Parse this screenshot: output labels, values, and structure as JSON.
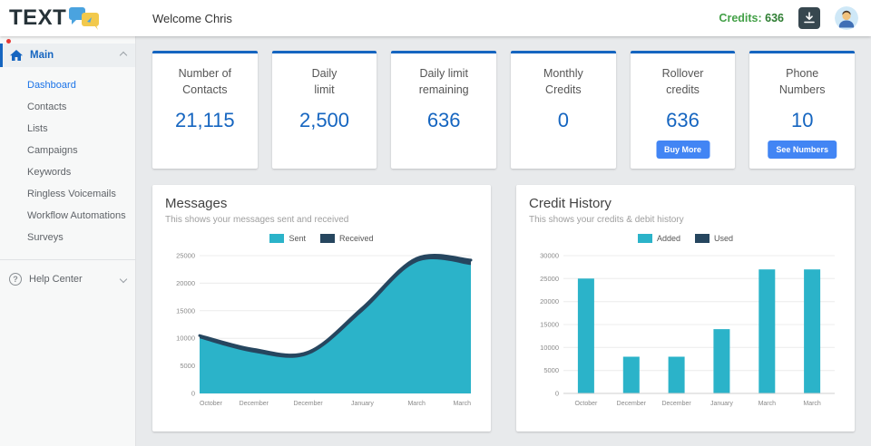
{
  "topbar": {
    "logo_text": "TEXT",
    "welcome": "Welcome Chris",
    "credits_label": "Credits:",
    "credits_value": "636"
  },
  "sidebar": {
    "main_label": "Main",
    "items": [
      "Dashboard",
      "Contacts",
      "Lists",
      "Campaigns",
      "Keywords",
      "Ringless Voicemails",
      "Workflow Automations",
      "Surveys"
    ],
    "active_item": "Dashboard",
    "help_label": "Help Center"
  },
  "stats": [
    {
      "title": "Number of\nContacts",
      "value": "21,115"
    },
    {
      "title": "Daily\nlimit",
      "value": "2,500"
    },
    {
      "title": "Daily limit\nremaining",
      "value": "636"
    },
    {
      "title": "Monthly\nCredits",
      "value": "0"
    },
    {
      "title": "Rollover\ncredits",
      "value": "636",
      "button": "Buy More"
    },
    {
      "title": "Phone\nNumbers",
      "value": "10",
      "button": "See Numbers"
    }
  ],
  "colors": {
    "accent_blue": "#1565c0",
    "button_blue": "#4285f4",
    "credits_green": "#43a047",
    "teal": "#2bb3c9",
    "navy": "#26465f"
  },
  "chart_data": [
    {
      "type": "area",
      "title": "Messages",
      "subtitle": "This shows your messages sent and received",
      "categories": [
        "October",
        "December",
        "December",
        "January",
        "March",
        "March"
      ],
      "series": [
        {
          "name": "Sent",
          "color": "#2bb3c9",
          "values": [
            10000,
            7400,
            7000,
            14800,
            23800,
            23300
          ]
        },
        {
          "name": "Received",
          "color": "#26465f",
          "values": [
            10500,
            8000,
            7500,
            15500,
            24500,
            24200
          ]
        }
      ],
      "ylim": [
        0,
        25000
      ],
      "yticks": [
        0,
        5000,
        10000,
        15000,
        20000,
        25000
      ],
      "grid": true,
      "legend_position": "top"
    },
    {
      "type": "bar",
      "title": "Credit History",
      "subtitle": "This shows your credits & debit history",
      "categories": [
        "October",
        "December",
        "December",
        "January",
        "March",
        "March"
      ],
      "series": [
        {
          "name": "Added",
          "color": "#2bb3c9",
          "values": [
            25000,
            8000,
            8000,
            14000,
            27000,
            27000
          ]
        },
        {
          "name": "Used",
          "color": "#26465f",
          "values": [
            0,
            0,
            0,
            0,
            0,
            0
          ]
        }
      ],
      "ylim": [
        0,
        30000
      ],
      "yticks": [
        0,
        5000,
        10000,
        15000,
        20000,
        25000,
        30000
      ],
      "grid": true,
      "legend_position": "top"
    }
  ]
}
